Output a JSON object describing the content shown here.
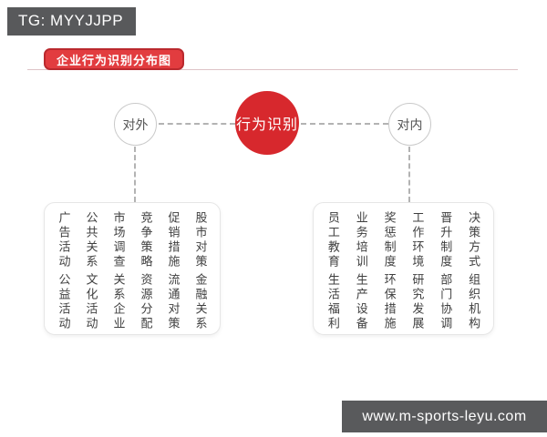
{
  "header": {
    "tg_badge": "TG: MYYJJPP",
    "title": "企业行为识别分布图"
  },
  "diagram": {
    "center_node": "行为识别",
    "left_node": "对外",
    "right_node": "对内",
    "left_group": {
      "row1": [
        "广告活动",
        "公共关系",
        "市场调查",
        "竞争策略",
        "促销措施",
        "股市对策"
      ],
      "row2": [
        "公益活动",
        "文化活动",
        "关系企业",
        "资源分配",
        "流通对策",
        "金融关系"
      ]
    },
    "right_group": {
      "row1": [
        "员工教育",
        "业务培训",
        "奖惩制度",
        "工作环境",
        "晋升制度",
        "决策方式"
      ],
      "row2": [
        "生活福利",
        "生产设备",
        "环保措施",
        "研究发展",
        "部门协调",
        "组织机构"
      ]
    }
  },
  "footer": {
    "watermark": "www.m-sports-leyu.com"
  },
  "colors": {
    "accent_red": "#d7282d",
    "badge_red": "#e23c3f",
    "badge_red_border": "#ba292e",
    "dark_gray": "#58595b",
    "connector_gray": "#b3b3b3"
  }
}
